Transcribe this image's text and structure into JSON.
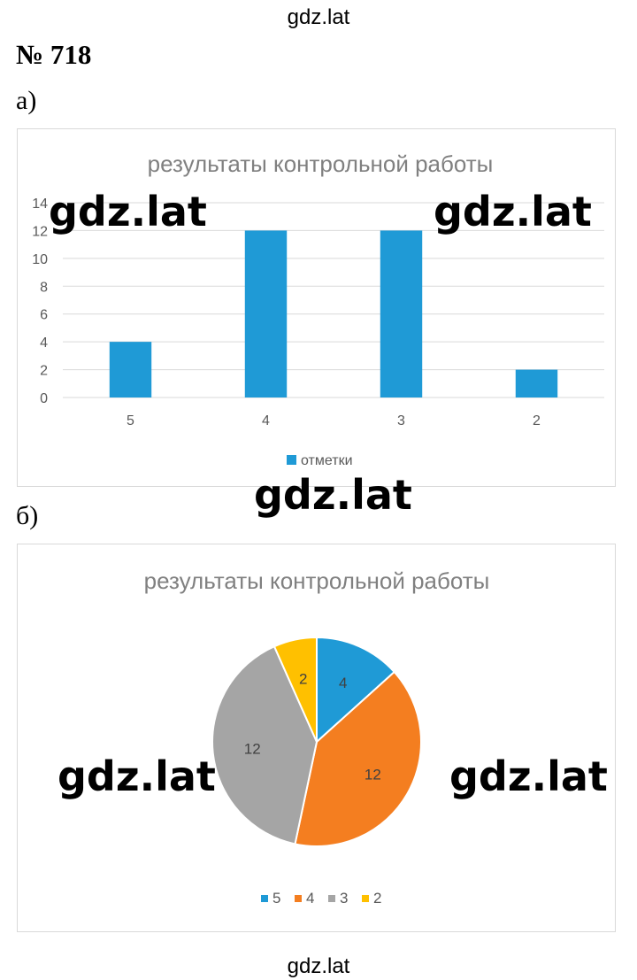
{
  "site": "gdz.lat",
  "task_number": "№ 718",
  "parts": {
    "a": "а)",
    "b": "б)"
  },
  "watermarks": [
    "gdz.lat",
    "gdz.lat",
    "gdz.lat",
    "gdz.lat",
    "gdz.lat"
  ],
  "chart_data": [
    {
      "type": "bar",
      "title": "результаты контрольной работы",
      "categories": [
        "5",
        "4",
        "3",
        "2"
      ],
      "series": [
        {
          "name": "отметки",
          "values": [
            4,
            12,
            12,
            2
          ],
          "color": "#1f9ad6"
        }
      ],
      "yticks": [
        "0",
        "2",
        "4",
        "6",
        "8",
        "10",
        "12",
        "14"
      ],
      "ylim": [
        0,
        14
      ],
      "grid": true,
      "legend": "bottom"
    },
    {
      "type": "pie",
      "title": "результаты контрольной работы",
      "labels": [
        "5",
        "4",
        "3",
        "2"
      ],
      "values": [
        4,
        12,
        12,
        2
      ],
      "data_labels": [
        "4",
        "12",
        "12",
        "2"
      ],
      "colors": [
        "#1f9ad6",
        "#f47e20",
        "#a5a5a5",
        "#ffc000"
      ],
      "legend": "bottom"
    }
  ]
}
